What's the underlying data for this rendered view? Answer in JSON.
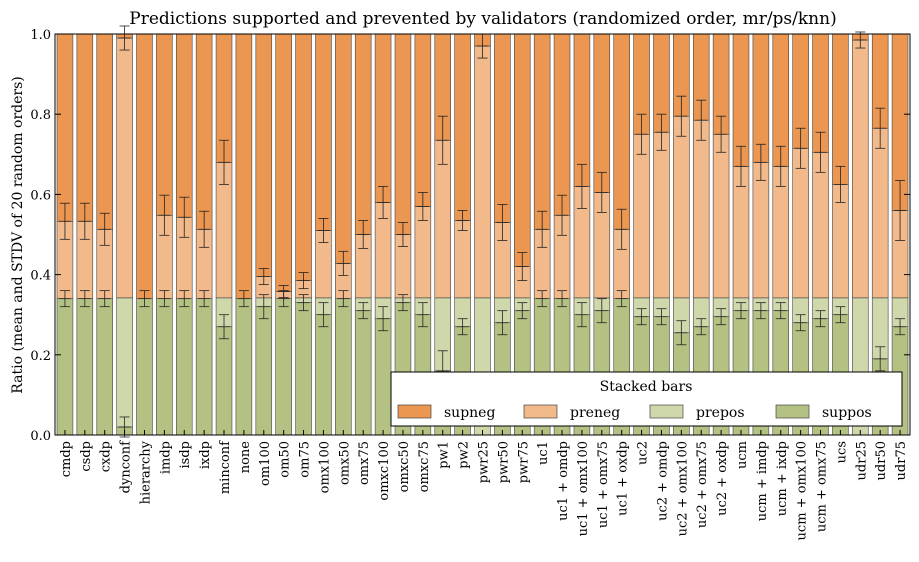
{
  "chart_data": {
    "type": "bar",
    "stacked": true,
    "title": "Predictions supported and prevented by validators (randomized order, mr/ps/knn)",
    "xlabel": "",
    "ylabel": "Ratio (mean and STDV of 20 random orders)",
    "ylim": [
      0,
      1.0
    ],
    "yticks": [
      "0.0",
      "0.2",
      "0.4",
      "0.6",
      "0.8",
      "1.0"
    ],
    "grid": false,
    "legend": {
      "title": "Stacked bars",
      "placement": "lower-right"
    },
    "categories": [
      "cmdp",
      "csdp",
      "cxdp",
      "dynconf",
      "hierarchy",
      "imdp",
      "isdp",
      "ixdp",
      "minconf",
      "none",
      "om100",
      "om50",
      "om75",
      "omx100",
      "omx50",
      "omx75",
      "omxc100",
      "omxc50",
      "omxc75",
      "pw1",
      "pw2",
      "pwr25",
      "pwr50",
      "pwr75",
      "uc1",
      "uc1 + omdp",
      "uc1 + omx100",
      "uc1 + omx75",
      "uc1 + oxdp",
      "uc2",
      "uc2 + omdp",
      "uc2 + omx100",
      "uc2 + omx75",
      "uc2 + oxdp",
      "ucm",
      "ucm + imdp",
      "ucm + ixdp",
      "ucm + omx100",
      "ucm + omx75",
      "ucs",
      "udr25",
      "udr50",
      "udr75"
    ],
    "series": [
      {
        "name": "suppos",
        "color": "#b3c283",
        "values": [
          0.34,
          0.34,
          0.34,
          0.02,
          0.34,
          0.34,
          0.34,
          0.34,
          0.27,
          0.34,
          0.32,
          0.34,
          0.33,
          0.3,
          0.34,
          0.31,
          0.29,
          0.33,
          0.3,
          0.16,
          0.27,
          0.0,
          0.28,
          0.31,
          0.34,
          0.34,
          0.3,
          0.31,
          0.34,
          0.295,
          0.295,
          0.255,
          0.27,
          0.295,
          0.31,
          0.31,
          0.31,
          0.28,
          0.29,
          0.3,
          0.0,
          0.19,
          0.27
        ],
        "errors": [
          0.02,
          0.02,
          0.02,
          0.025,
          0.02,
          0.02,
          0.02,
          0.02,
          0.03,
          0.02,
          0.03,
          0.02,
          0.02,
          0.03,
          0.02,
          0.02,
          0.03,
          0.02,
          0.03,
          0.05,
          0.02,
          0.0,
          0.03,
          0.02,
          0.02,
          0.02,
          0.03,
          0.03,
          0.02,
          0.02,
          0.02,
          0.03,
          0.02,
          0.02,
          0.02,
          0.02,
          0.02,
          0.02,
          0.02,
          0.02,
          0.0,
          0.03,
          0.02
        ]
      },
      {
        "name": "prepos",
        "color": "#cfd8aa",
        "values": [
          0.0,
          0.0,
          0.0,
          0.322,
          0.0,
          0.0,
          0.0,
          0.0,
          0.072,
          0.0,
          0.022,
          0.0,
          0.012,
          0.042,
          0.0,
          0.032,
          0.052,
          0.012,
          0.042,
          0.182,
          0.072,
          0.342,
          0.062,
          0.032,
          0.0,
          0.0,
          0.042,
          0.032,
          0.0,
          0.047,
          0.047,
          0.087,
          0.072,
          0.047,
          0.032,
          0.032,
          0.032,
          0.062,
          0.052,
          0.042,
          0.342,
          0.152,
          0.072
        ],
        "errors": [
          0.0,
          0.0,
          0.0,
          0.0,
          0.0,
          0.0,
          0.0,
          0.0,
          0.0,
          0.0,
          0.0,
          0.0,
          0.0,
          0.0,
          0.0,
          0.0,
          0.0,
          0.0,
          0.0,
          0.0,
          0.0,
          0.0,
          0.0,
          0.0,
          0.0,
          0.0,
          0.0,
          0.0,
          0.0,
          0.0,
          0.0,
          0.0,
          0.0,
          0.0,
          0.0,
          0.0,
          0.0,
          0.0,
          0.0,
          0.0,
          0.0,
          0.0,
          0.0
        ]
      },
      {
        "name": "preneg",
        "color": "#f2b98a",
        "values": [
          0.193,
          0.193,
          0.173,
          0.648,
          0.0,
          0.208,
          0.203,
          0.173,
          0.338,
          0.0,
          0.053,
          0.018,
          0.043,
          0.168,
          0.088,
          0.158,
          0.238,
          0.158,
          0.228,
          0.393,
          0.193,
          0.628,
          0.188,
          0.078,
          0.173,
          0.208,
          0.278,
          0.263,
          0.173,
          0.408,
          0.413,
          0.453,
          0.443,
          0.408,
          0.328,
          0.338,
          0.328,
          0.373,
          0.363,
          0.283,
          0.643,
          0.423,
          0.218
        ],
        "errors": [
          0.045,
          0.045,
          0.04,
          0.03,
          0.0,
          0.05,
          0.05,
          0.045,
          0.055,
          0.0,
          0.02,
          0.015,
          0.02,
          0.03,
          0.03,
          0.035,
          0.04,
          0.03,
          0.035,
          0.06,
          0.025,
          0.03,
          0.045,
          0.035,
          0.045,
          0.05,
          0.055,
          0.05,
          0.05,
          0.05,
          0.045,
          0.05,
          0.05,
          0.045,
          0.05,
          0.045,
          0.05,
          0.05,
          0.05,
          0.045,
          0.02,
          0.05,
          0.075
        ]
      },
      {
        "name": "supneg",
        "color": "#eb9651",
        "values": [
          0.467,
          0.467,
          0.487,
          0.01,
          0.66,
          0.452,
          0.457,
          0.487,
          0.32,
          0.66,
          0.605,
          0.642,
          0.615,
          0.49,
          0.572,
          0.5,
          0.42,
          0.5,
          0.43,
          0.265,
          0.465,
          0.03,
          0.47,
          0.58,
          0.487,
          0.452,
          0.38,
          0.395,
          0.487,
          0.25,
          0.245,
          0.205,
          0.215,
          0.25,
          0.33,
          0.32,
          0.33,
          0.285,
          0.295,
          0.375,
          0.015,
          0.235,
          0.44
        ],
        "errors": [
          0.0,
          0.0,
          0.0,
          0.0,
          0.0,
          0.0,
          0.0,
          0.0,
          0.0,
          0.0,
          0.0,
          0.0,
          0.0,
          0.0,
          0.0,
          0.0,
          0.0,
          0.0,
          0.0,
          0.0,
          0.0,
          0.0,
          0.0,
          0.0,
          0.0,
          0.0,
          0.0,
          0.0,
          0.0,
          0.0,
          0.0,
          0.0,
          0.0,
          0.0,
          0.0,
          0.0,
          0.0,
          0.0,
          0.0,
          0.0,
          0.0,
          0.0,
          0.0
        ]
      }
    ]
  }
}
